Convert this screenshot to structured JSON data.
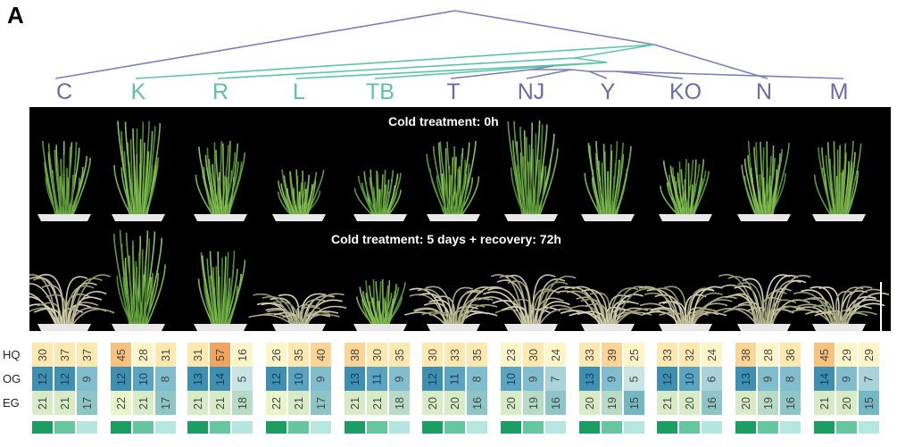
{
  "figure": {
    "panel_letter": "A",
    "caption_top": "Cold treatment: 0h",
    "caption_bottom": "Cold treatment: 5 days  + recovery: 72h",
    "row_labels": [
      "HQ",
      "OG",
      "EG"
    ]
  },
  "colors": {
    "tree_group_purple": "#7b7fb8",
    "tree_group_teal": "#5cc6a4",
    "label_purple": "#6a6aa8",
    "label_teal": "#5bc3a2",
    "strip": [
      "#1c9e62",
      "#66c6a0",
      "#b6e6e0"
    ]
  },
  "accessions": [
    {
      "label": "C",
      "group": "purple",
      "HQ": [
        30,
        37,
        37
      ],
      "OG": [
        12,
        12,
        9
      ],
      "EG": [
        21,
        21,
        17
      ]
    },
    {
      "label": "K",
      "group": "teal",
      "HQ": [
        45,
        28,
        31
      ],
      "OG": [
        12,
        10,
        8
      ],
      "EG": [
        22,
        21,
        17
      ]
    },
    {
      "label": "R",
      "group": "teal",
      "HQ": [
        31,
        57,
        16
      ],
      "OG": [
        13,
        14,
        5
      ],
      "EG": [
        21,
        21,
        18
      ]
    },
    {
      "label": "L",
      "group": "teal",
      "HQ": [
        26,
        35,
        40
      ],
      "OG": [
        12,
        10,
        9
      ],
      "EG": [
        22,
        21,
        17
      ]
    },
    {
      "label": "TB",
      "group": "teal",
      "HQ": [
        38,
        30,
        35
      ],
      "OG": [
        13,
        11,
        9
      ],
      "EG": [
        21,
        21,
        18
      ]
    },
    {
      "label": "T",
      "group": "purple",
      "HQ": [
        30,
        33,
        35
      ],
      "OG": [
        12,
        11,
        8
      ],
      "EG": [
        20,
        20,
        16
      ]
    },
    {
      "label": "NJ",
      "group": "purple",
      "HQ": [
        23,
        30,
        24
      ],
      "OG": [
        10,
        9,
        7
      ],
      "EG": [
        20,
        19,
        16
      ]
    },
    {
      "label": "Y",
      "group": "purple",
      "HQ": [
        33,
        39,
        25
      ],
      "OG": [
        13,
        9,
        5
      ],
      "EG": [
        20,
        19,
        15
      ]
    },
    {
      "label": "KO",
      "group": "purple",
      "HQ": [
        33,
        32,
        24
      ],
      "OG": [
        12,
        10,
        6
      ],
      "EG": [
        21,
        20,
        16
      ]
    },
    {
      "label": "N",
      "group": "purple",
      "HQ": [
        38,
        28,
        36
      ],
      "OG": [
        13,
        9,
        8
      ],
      "EG": [
        20,
        19,
        16
      ]
    },
    {
      "label": "M",
      "group": "purple",
      "HQ": [
        45,
        29,
        29
      ],
      "OG": [
        14,
        9,
        7
      ],
      "EG": [
        21,
        20,
        15
      ]
    }
  ],
  "plants_top": [
    {
      "health": "green",
      "size": "large"
    },
    {
      "health": "green",
      "size": "xlarge"
    },
    {
      "health": "green",
      "size": "large"
    },
    {
      "health": "green",
      "size": "small"
    },
    {
      "health": "green",
      "size": "small"
    },
    {
      "health": "green",
      "size": "large"
    },
    {
      "health": "green",
      "size": "xlarge"
    },
    {
      "health": "green",
      "size": "large"
    },
    {
      "health": "green",
      "size": "medium"
    },
    {
      "health": "green",
      "size": "large"
    },
    {
      "health": "green",
      "size": "large"
    }
  ],
  "plants_bottom": [
    {
      "health": "wilted",
      "size": "large"
    },
    {
      "health": "green",
      "size": "xlarge"
    },
    {
      "health": "green",
      "size": "large"
    },
    {
      "health": "wilted",
      "size": "small"
    },
    {
      "health": "green",
      "size": "small"
    },
    {
      "health": "wilted",
      "size": "medium"
    },
    {
      "health": "wilted",
      "size": "large"
    },
    {
      "health": "wilted",
      "size": "medium"
    },
    {
      "health": "wilted",
      "size": "medium"
    },
    {
      "health": "wilted",
      "size": "large"
    },
    {
      "health": "wilted",
      "size": "medium"
    }
  ]
}
